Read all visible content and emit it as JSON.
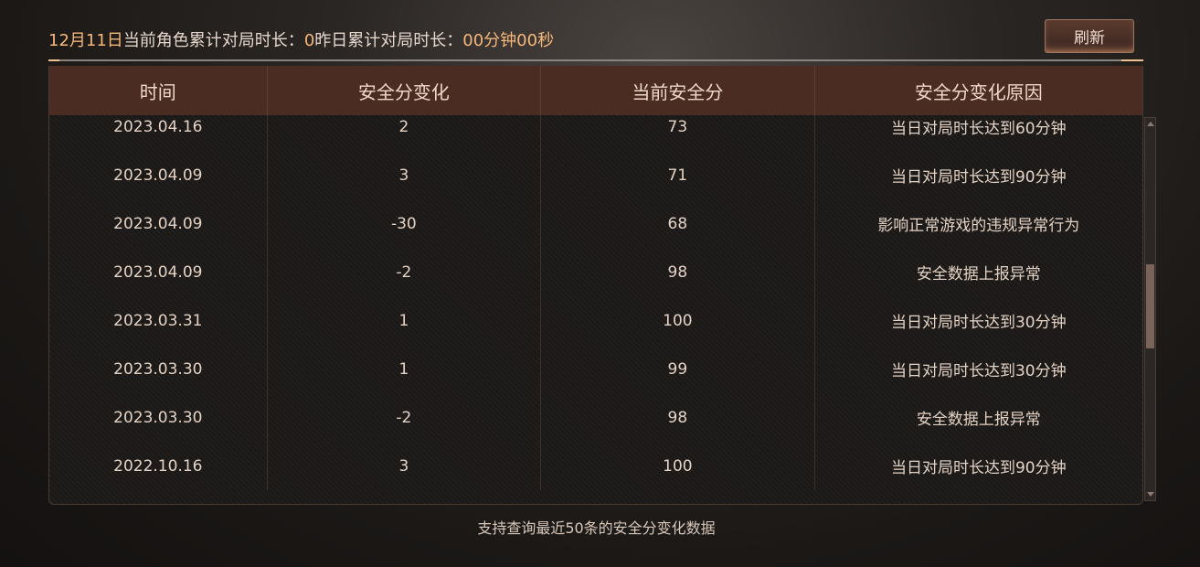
{
  "header": {
    "date": "12月11日",
    "current_label": "当前角色累计对局时长：",
    "current_value": "0",
    "yesterday_label": "昨日累计对局时长：",
    "yesterday_value": "00分钟00秒",
    "refresh_label": "刷新"
  },
  "table": {
    "columns": [
      "时间",
      "安全分变化",
      "当前安全分",
      "安全分变化原因"
    ],
    "rows": [
      [
        "2023.04.16",
        "2",
        "73",
        "当日对局时长达到60分钟"
      ],
      [
        "2023.04.09",
        "3",
        "71",
        "当日对局时长达到90分钟"
      ],
      [
        "2023.04.09",
        "-30",
        "68",
        "影响正常游戏的违规异常行为"
      ],
      [
        "2023.04.09",
        "-2",
        "98",
        "安全数据上报异常"
      ],
      [
        "2023.03.31",
        "1",
        "100",
        "当日对局时长达到30分钟"
      ],
      [
        "2023.03.30",
        "1",
        "99",
        "当日对局时长达到30分钟"
      ],
      [
        "2023.03.30",
        "-2",
        "98",
        "安全数据上报异常"
      ],
      [
        "2022.10.16",
        "3",
        "100",
        "当日对局时长达到90分钟"
      ]
    ]
  },
  "footer": "支持查询最近50条的安全分变化数据",
  "colors": {
    "accent": "#f5b77a",
    "header_bg": "#4a2c22"
  }
}
